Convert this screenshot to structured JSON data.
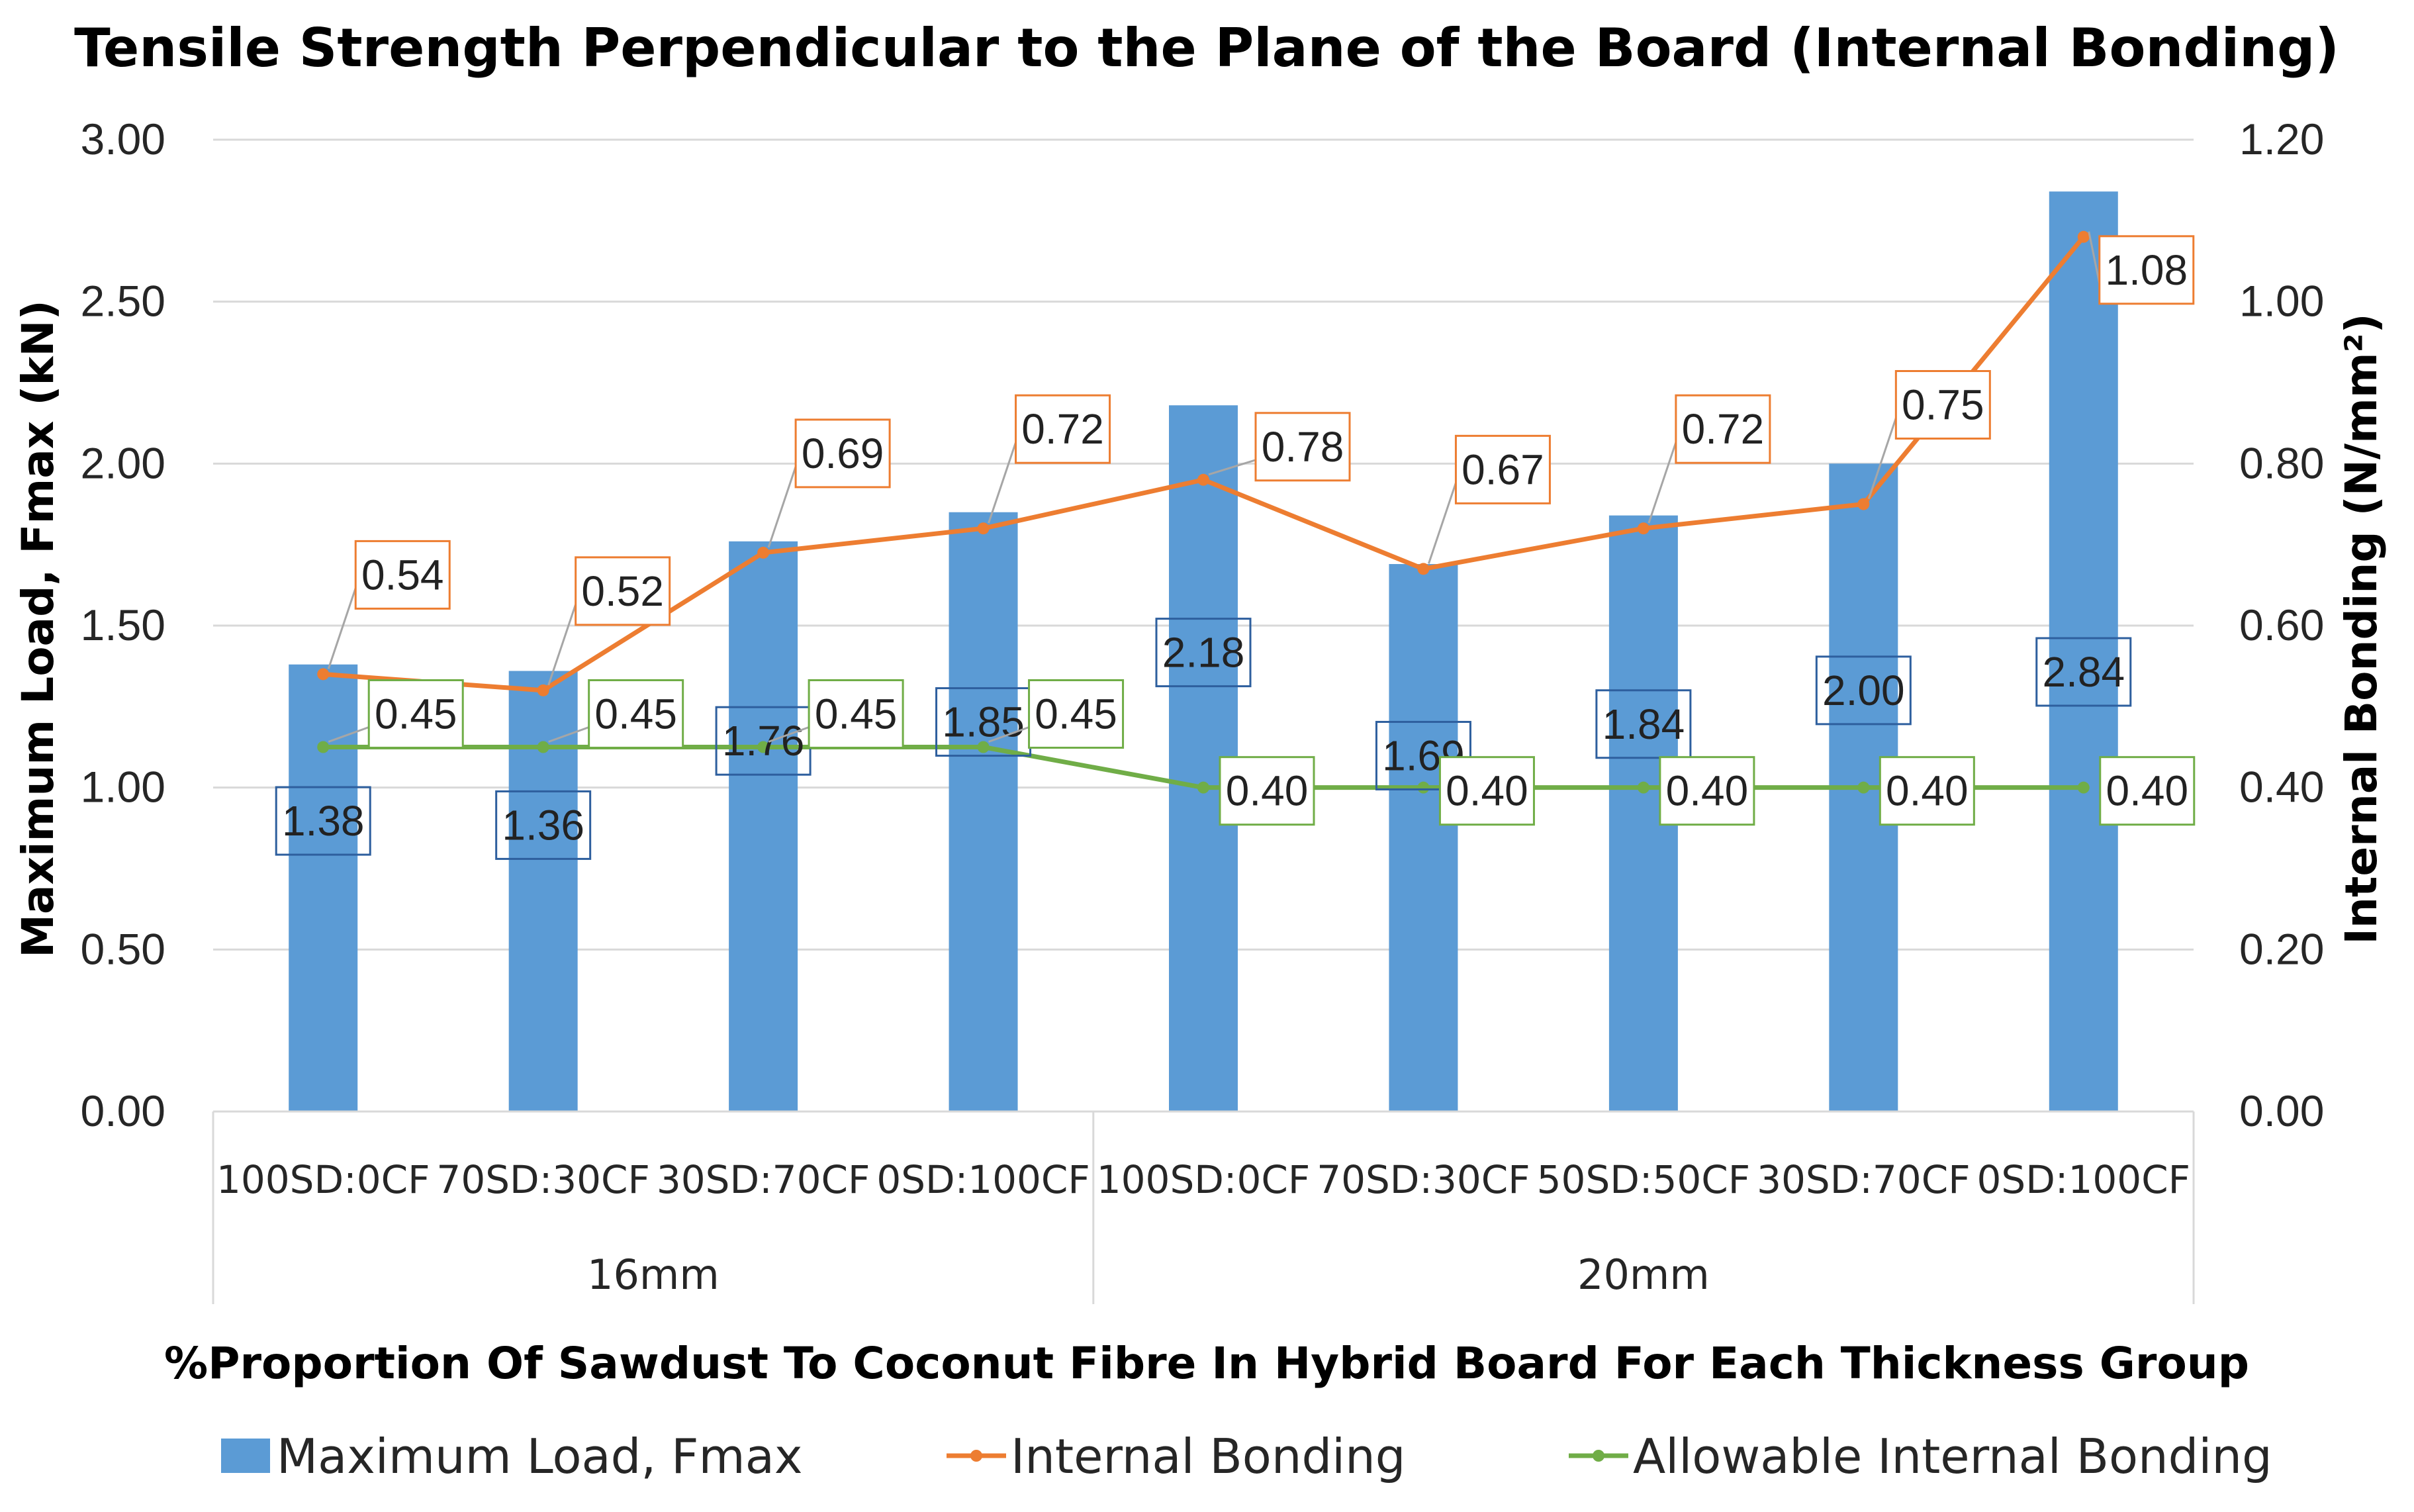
{
  "chart_data": {
    "type": "bar",
    "title": "Tensile Strength Perpendicular to the Plane of the Board (Internal Bonding)",
    "xlabel": "%Proportion Of Sawdust To Coconut Fibre In Hybrid Board For Each Thickness Group",
    "ylabel": "Maximum Load, Fmax (kN)",
    "y2label": "Internal Bonding (N/mm²)",
    "ylim": [
      0,
      3.0
    ],
    "y2lim": [
      0,
      1.2
    ],
    "yticks": [
      "0.00",
      "0.50",
      "1.00",
      "1.50",
      "2.00",
      "2.50",
      "3.00"
    ],
    "y2ticks": [
      "0.00",
      "0.20",
      "0.40",
      "0.60",
      "0.80",
      "1.00",
      "1.20"
    ],
    "groups": [
      {
        "name": "16mm",
        "count": 4
      },
      {
        "name": "20mm",
        "count": 5
      }
    ],
    "categories": [
      "100SD:0CF",
      "70SD:30CF",
      "30SD:70CF",
      "0SD:100CF",
      "100SD:0CF",
      "70SD:30CF",
      "50SD:50CF",
      "30SD:70CF",
      "0SD:100CF"
    ],
    "series": [
      {
        "name": "Maximum Load, Fmax",
        "kind": "bar",
        "axis": "left",
        "color": "#5b9bd5",
        "label_border": "#2e5f9e",
        "values": [
          1.38,
          1.36,
          1.76,
          1.85,
          2.18,
          1.69,
          1.84,
          2.0,
          2.84
        ],
        "labels": [
          "1.38",
          "1.36",
          "1.76",
          "1.85",
          "2.18",
          "1.69",
          "1.84",
          "2.00",
          "2.84"
        ]
      },
      {
        "name": "Internal Bonding",
        "kind": "line",
        "axis": "right",
        "color": "#ed7d31",
        "label_border": "#ed7d31",
        "values": [
          0.54,
          0.52,
          0.69,
          0.72,
          0.78,
          0.67,
          0.72,
          0.75,
          1.08
        ],
        "labels": [
          "0.54",
          "0.52",
          "0.69",
          "0.72",
          "0.78",
          "0.67",
          "0.72",
          "0.75",
          "1.08"
        ]
      },
      {
        "name": "Allowable Internal Bonding",
        "kind": "line",
        "axis": "right",
        "color": "#70ad47",
        "label_border": "#70ad47",
        "values": [
          0.45,
          0.45,
          0.45,
          0.45,
          0.4,
          0.4,
          0.4,
          0.4,
          0.4
        ],
        "labels": [
          "0.45",
          "0.45",
          "0.45",
          "0.45",
          "0.40",
          "0.40",
          "0.40",
          "0.40",
          "0.40"
        ]
      }
    ],
    "legend_position": "bottom"
  }
}
